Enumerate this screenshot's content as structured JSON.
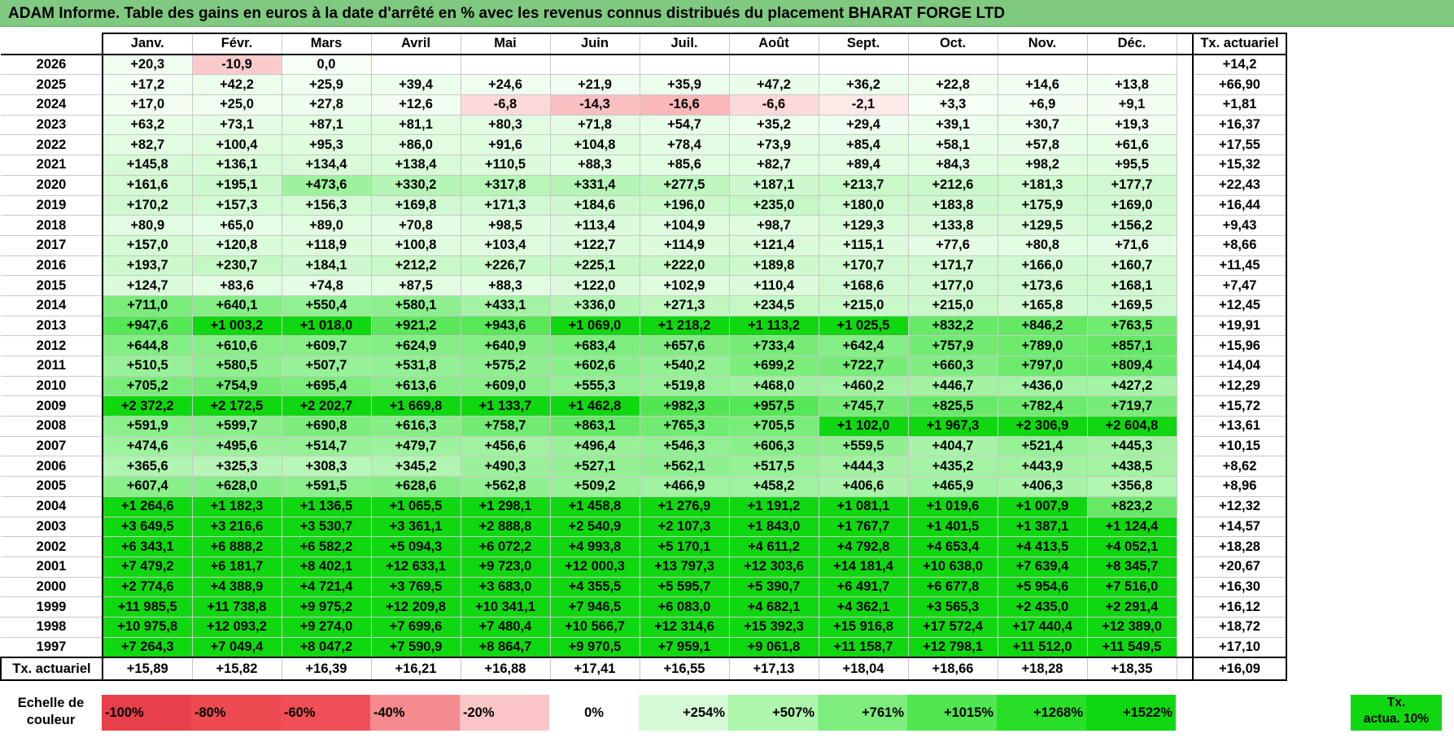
{
  "title": "ADAM Informe. Table des gains en euros à la date d'arrêté en % avec les revenus connus distribués du placement BHARAT FORGE LTD",
  "headers": {
    "months": [
      "Janv.",
      "Févr.",
      "Mars",
      "Avril",
      "Mai",
      "Juin",
      "Juil.",
      "Août",
      "Sept.",
      "Oct.",
      "Nov.",
      "Déc."
    ],
    "tx": "Tx. actuariel"
  },
  "rows": [
    {
      "year": "2026",
      "cells": [
        "+20,3",
        "-10,9",
        "0,0",
        "",
        "",
        "",
        "",
        "",
        "",
        "",
        "",
        ""
      ],
      "tx": "+14,2"
    },
    {
      "year": "2025",
      "cells": [
        "+17,2",
        "+42,2",
        "+25,9",
        "+39,4",
        "+24,6",
        "+21,9",
        "+35,9",
        "+47,2",
        "+36,2",
        "+22,8",
        "+14,6",
        "+13,8"
      ],
      "tx": "+66,90"
    },
    {
      "year": "2024",
      "cells": [
        "+17,0",
        "+25,0",
        "+27,8",
        "+12,6",
        "-6,8",
        "-14,3",
        "-16,6",
        "-6,6",
        "-2,1",
        "+3,3",
        "+6,9",
        "+9,1"
      ],
      "tx": "+1,81"
    },
    {
      "year": "2023",
      "cells": [
        "+63,2",
        "+73,1",
        "+87,1",
        "+81,1",
        "+80,3",
        "+71,8",
        "+54,7",
        "+35,2",
        "+29,4",
        "+39,1",
        "+30,7",
        "+19,3"
      ],
      "tx": "+16,37"
    },
    {
      "year": "2022",
      "cells": [
        "+82,7",
        "+100,4",
        "+95,3",
        "+86,0",
        "+91,6",
        "+104,8",
        "+78,4",
        "+73,9",
        "+85,4",
        "+58,1",
        "+57,8",
        "+61,6"
      ],
      "tx": "+17,55"
    },
    {
      "year": "2021",
      "cells": [
        "+145,8",
        "+136,1",
        "+134,4",
        "+138,4",
        "+110,5",
        "+88,3",
        "+85,6",
        "+82,7",
        "+89,4",
        "+84,3",
        "+98,2",
        "+95,5"
      ],
      "tx": "+15,32"
    },
    {
      "year": "2020",
      "cells": [
        "+161,6",
        "+195,1",
        "+473,6",
        "+330,2",
        "+317,8",
        "+331,4",
        "+277,5",
        "+187,1",
        "+213,7",
        "+212,6",
        "+181,3",
        "+177,7"
      ],
      "tx": "+22,43"
    },
    {
      "year": "2019",
      "cells": [
        "+170,2",
        "+157,3",
        "+156,3",
        "+169,8",
        "+171,3",
        "+184,6",
        "+196,0",
        "+235,0",
        "+180,0",
        "+183,8",
        "+175,9",
        "+169,0"
      ],
      "tx": "+16,44"
    },
    {
      "year": "2018",
      "cells": [
        "+80,9",
        "+65,0",
        "+89,0",
        "+70,8",
        "+98,5",
        "+113,4",
        "+104,9",
        "+98,7",
        "+129,3",
        "+133,8",
        "+129,5",
        "+156,2"
      ],
      "tx": "+9,43"
    },
    {
      "year": "2017",
      "cells": [
        "+157,0",
        "+120,8",
        "+118,9",
        "+100,8",
        "+103,4",
        "+122,7",
        "+114,9",
        "+121,4",
        "+115,1",
        "+77,6",
        "+80,8",
        "+71,6"
      ],
      "tx": "+8,66"
    },
    {
      "year": "2016",
      "cells": [
        "+193,7",
        "+230,7",
        "+184,1",
        "+212,2",
        "+226,7",
        "+225,1",
        "+222,0",
        "+189,8",
        "+170,7",
        "+171,7",
        "+166,0",
        "+160,7"
      ],
      "tx": "+11,45"
    },
    {
      "year": "2015",
      "cells": [
        "+124,7",
        "+83,6",
        "+74,8",
        "+87,5",
        "+88,3",
        "+122,0",
        "+102,9",
        "+110,4",
        "+168,6",
        "+177,0",
        "+173,6",
        "+168,1"
      ],
      "tx": "+7,47"
    },
    {
      "year": "2014",
      "cells": [
        "+711,0",
        "+640,1",
        "+550,4",
        "+580,1",
        "+433,1",
        "+336,0",
        "+271,3",
        "+234,5",
        "+215,0",
        "+215,0",
        "+165,8",
        "+169,5"
      ],
      "tx": "+12,45"
    },
    {
      "year": "2013",
      "cells": [
        "+947,6",
        "+1 003,2",
        "+1 018,0",
        "+921,2",
        "+943,6",
        "+1 069,0",
        "+1 218,2",
        "+1 113,2",
        "+1 025,5",
        "+832,2",
        "+846,2",
        "+763,5"
      ],
      "tx": "+19,91"
    },
    {
      "year": "2012",
      "cells": [
        "+644,8",
        "+610,6",
        "+609,7",
        "+624,9",
        "+640,9",
        "+683,4",
        "+657,6",
        "+733,4",
        "+642,4",
        "+757,9",
        "+789,0",
        "+857,1"
      ],
      "tx": "+15,96"
    },
    {
      "year": "2011",
      "cells": [
        "+510,5",
        "+580,5",
        "+507,7",
        "+531,8",
        "+575,2",
        "+602,6",
        "+540,2",
        "+699,2",
        "+722,7",
        "+660,3",
        "+797,0",
        "+809,4"
      ],
      "tx": "+14,04"
    },
    {
      "year": "2010",
      "cells": [
        "+705,2",
        "+754,9",
        "+695,4",
        "+613,6",
        "+609,0",
        "+555,3",
        "+519,8",
        "+468,0",
        "+460,2",
        "+446,7",
        "+436,0",
        "+427,2"
      ],
      "tx": "+12,29"
    },
    {
      "year": "2009",
      "cells": [
        "+2 372,2",
        "+2 172,5",
        "+2 202,7",
        "+1 669,8",
        "+1 133,7",
        "+1 462,8",
        "+982,3",
        "+957,5",
        "+745,7",
        "+825,5",
        "+782,4",
        "+719,7"
      ],
      "tx": "+15,72"
    },
    {
      "year": "2008",
      "cells": [
        "+591,9",
        "+599,7",
        "+690,8",
        "+616,3",
        "+758,7",
        "+863,1",
        "+765,3",
        "+705,5",
        "+1 102,0",
        "+1 967,3",
        "+2 306,9",
        "+2 604,8"
      ],
      "tx": "+13,61"
    },
    {
      "year": "2007",
      "cells": [
        "+474,6",
        "+495,6",
        "+514,7",
        "+479,7",
        "+456,6",
        "+496,4",
        "+546,3",
        "+606,3",
        "+559,5",
        "+404,7",
        "+521,4",
        "+445,3"
      ],
      "tx": "+10,15"
    },
    {
      "year": "2006",
      "cells": [
        "+365,6",
        "+325,3",
        "+308,3",
        "+345,2",
        "+490,3",
        "+527,1",
        "+562,1",
        "+517,5",
        "+444,3",
        "+435,2",
        "+443,9",
        "+438,5"
      ],
      "tx": "+8,62"
    },
    {
      "year": "2005",
      "cells": [
        "+607,4",
        "+628,0",
        "+591,5",
        "+628,6",
        "+562,8",
        "+509,2",
        "+466,9",
        "+458,2",
        "+406,6",
        "+465,9",
        "+406,3",
        "+356,8"
      ],
      "tx": "+8,96"
    },
    {
      "year": "2004",
      "cells": [
        "+1 264,6",
        "+1 182,3",
        "+1 136,5",
        "+1 065,5",
        "+1 298,1",
        "+1 458,8",
        "+1 276,9",
        "+1 191,2",
        "+1 081,1",
        "+1 019,6",
        "+1 007,9",
        "+823,2"
      ],
      "tx": "+12,32"
    },
    {
      "year": "2003",
      "cells": [
        "+3 649,5",
        "+3 216,6",
        "+3 530,7",
        "+3 361,1",
        "+2 888,8",
        "+2 540,9",
        "+2 107,3",
        "+1 843,0",
        "+1 767,7",
        "+1 401,5",
        "+1 387,1",
        "+1 124,4"
      ],
      "tx": "+14,57"
    },
    {
      "year": "2002",
      "cells": [
        "+6 343,1",
        "+6 888,2",
        "+6 582,2",
        "+5 094,3",
        "+6 072,2",
        "+4 993,8",
        "+5 170,1",
        "+4 611,2",
        "+4 792,8",
        "+4 653,4",
        "+4 413,5",
        "+4 052,1"
      ],
      "tx": "+18,28"
    },
    {
      "year": "2001",
      "cells": [
        "+7 479,2",
        "+6 181,7",
        "+8 402,1",
        "+12 633,1",
        "+9 723,0",
        "+12 000,3",
        "+13 797,3",
        "+12 303,6",
        "+14 181,4",
        "+10 638,0",
        "+7 639,4",
        "+8 345,7"
      ],
      "tx": "+20,67"
    },
    {
      "year": "2000",
      "cells": [
        "+2 774,6",
        "+4 388,9",
        "+4 721,4",
        "+3 769,5",
        "+3 683,0",
        "+4 355,5",
        "+5 595,7",
        "+5 390,7",
        "+6 491,7",
        "+6 677,8",
        "+5 954,6",
        "+7 516,0"
      ],
      "tx": "+16,30"
    },
    {
      "year": "1999",
      "cells": [
        "+11 985,5",
        "+11 738,8",
        "+9 975,2",
        "+12 209,8",
        "+10 341,1",
        "+7 946,5",
        "+6 083,0",
        "+4 682,1",
        "+4 362,1",
        "+3 565,3",
        "+2 435,0",
        "+2 291,4"
      ],
      "tx": "+16,12"
    },
    {
      "year": "1998",
      "cells": [
        "+10 975,8",
        "+12 093,2",
        "+9 274,0",
        "+7 699,6",
        "+7 480,4",
        "+10 566,7",
        "+12 314,6",
        "+15 392,3",
        "+15 916,8",
        "+17 572,4",
        "+17 440,4",
        "+12 389,0"
      ],
      "tx": "+18,72"
    },
    {
      "year": "1997",
      "cells": [
        "+7 264,3",
        "+7 049,4",
        "+8 047,2",
        "+7 590,9",
        "+8 864,7",
        "+9 970,5",
        "+7 959,1",
        "+9 061,8",
        "+11 158,7",
        "+12 798,1",
        "+11 512,0",
        "+11 549,5"
      ],
      "tx": "+17,10"
    }
  ],
  "footer": {
    "label": "Tx. actuariel",
    "cells": [
      "+15,89",
      "+15,82",
      "+16,39",
      "+16,21",
      "+16,88",
      "+17,41",
      "+16,55",
      "+17,13",
      "+18,04",
      "+18,66",
      "+18,28",
      "+18,35"
    ],
    "tx": "+16,09"
  },
  "scale": {
    "label_line1": "Echelle de",
    "label_line2": "couleur",
    "swatches": [
      {
        "label": "-100%",
        "color": "#e8404a"
      },
      {
        "label": "-80%",
        "color": "#ed4a52"
      },
      {
        "label": "-60%",
        "color": "#f04f57"
      },
      {
        "label": "-40%",
        "color": "#f58a8f"
      },
      {
        "label": "-20%",
        "color": "#fbc4c6"
      },
      {
        "label": "0%",
        "color": "#ffffff"
      },
      {
        "label": "+254%",
        "color": "#d6fad6"
      },
      {
        "label": "+507%",
        "color": "#aef5ae"
      },
      {
        "label": "+761%",
        "color": "#7dee7d"
      },
      {
        "label": "+1015%",
        "color": "#4fe64f"
      },
      {
        "label": "+1268%",
        "color": "#28e028"
      },
      {
        "label": "+1522%",
        "color": "#10d810"
      }
    ],
    "tx_line1": "Tx.",
    "tx_line2": "actua. 10%",
    "tx_color": "#10d810"
  },
  "colors": {
    "title_bar": "#80c980",
    "negative": "#f58a8f",
    "positive": "#10d810"
  }
}
